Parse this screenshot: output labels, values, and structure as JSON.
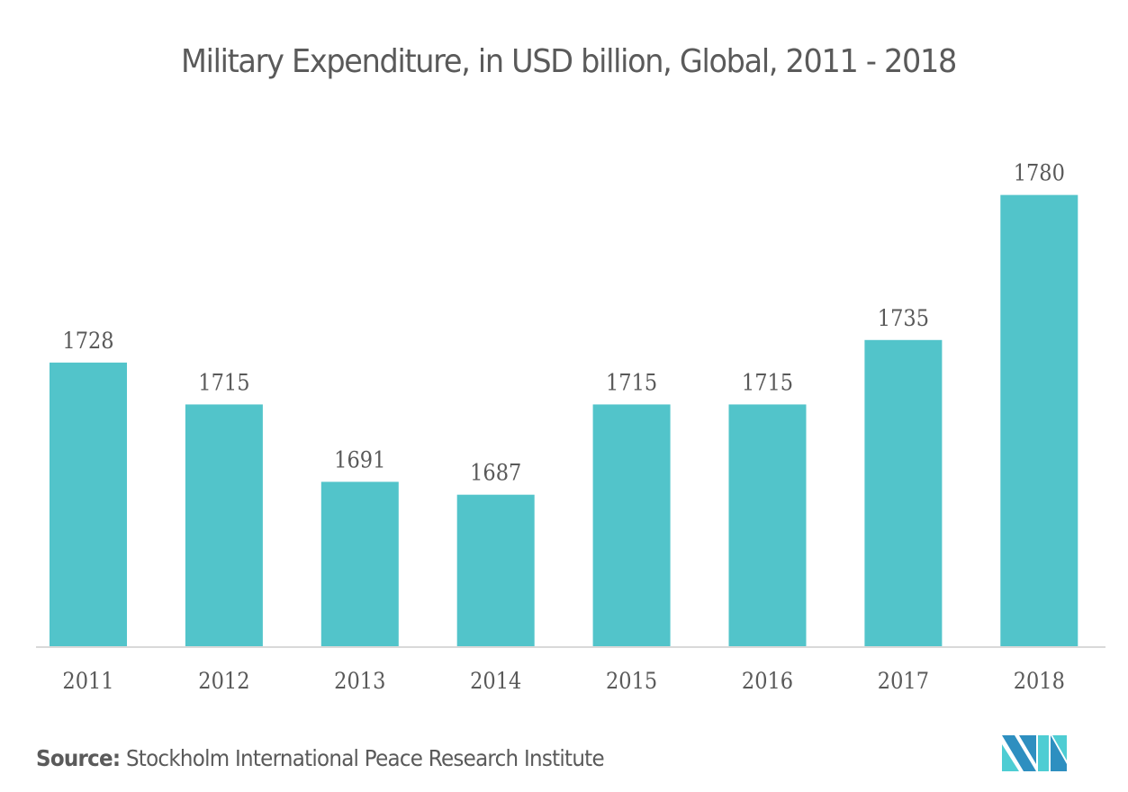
{
  "chart_data": {
    "type": "bar",
    "title": "Military Expenditure, in USD billion, Global, 2011 - 2018",
    "xlabel": "",
    "ylabel": "",
    "categories": [
      "2011",
      "2012",
      "2013",
      "2014",
      "2015",
      "2016",
      "2017",
      "2018"
    ],
    "values": [
      1728,
      1715,
      1691,
      1687,
      1715,
      1715,
      1735,
      1780
    ],
    "data_labels": [
      "1728",
      "1715",
      "1691",
      "1687",
      "1715",
      "1715",
      "1735",
      "1780"
    ],
    "ylim": [
      1640,
      1800
    ],
    "grid": false,
    "legend": "none",
    "bar_color": "#52c4ca",
    "axis_color": "#d9d9d9"
  },
  "footer": {
    "source_label": "Source:",
    "source_text": " Stockholm International Peace Research Institute"
  },
  "logo": {
    "name": "mordor-intelligence-logo-icon",
    "colors": [
      "#2e8fc0",
      "#4ecdd3"
    ]
  }
}
